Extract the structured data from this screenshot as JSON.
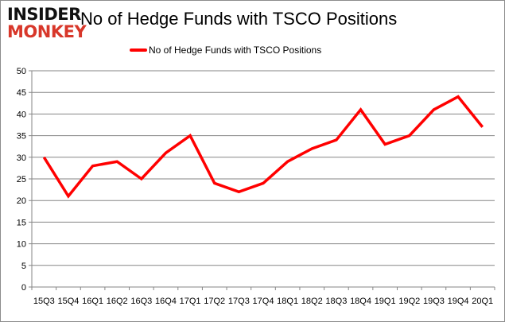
{
  "logo": {
    "line1": "INSIDER",
    "line2": "MONKEY"
  },
  "chart_data": {
    "type": "line",
    "title": "No of Hedge Funds with TSCO Positions",
    "xlabel": "",
    "ylabel": "",
    "categories": [
      "15Q3",
      "15Q4",
      "16Q1",
      "16Q2",
      "16Q3",
      "16Q4",
      "17Q1",
      "17Q2",
      "17Q3",
      "17Q4",
      "18Q1",
      "18Q2",
      "18Q3",
      "18Q4",
      "19Q1",
      "19Q2",
      "19Q3",
      "19Q4",
      "20Q1"
    ],
    "series": [
      {
        "name": "No of Hedge Funds with TSCO Positions",
        "values": [
          30,
          21,
          28,
          29,
          25,
          31,
          35,
          24,
          22,
          24,
          29,
          32,
          34,
          41,
          33,
          35,
          41,
          44,
          37
        ],
        "color": "#ff0000"
      }
    ],
    "ylim": [
      0,
      50
    ],
    "yticks": [
      0,
      5,
      10,
      15,
      20,
      25,
      30,
      35,
      40,
      45,
      50
    ],
    "grid": true,
    "legend": "top-center"
  }
}
